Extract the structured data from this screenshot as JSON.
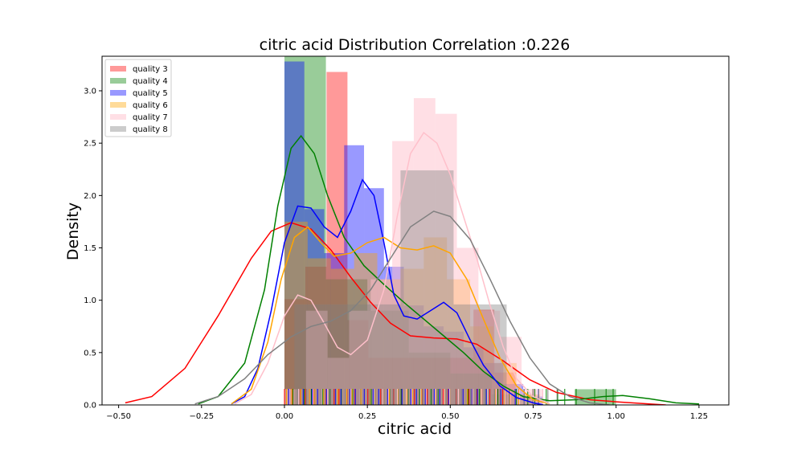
{
  "chart_data": {
    "type": "histogram-kde",
    "title": "citric acid Distribution Correlation :0.226",
    "xlabel": "citric acid",
    "ylabel": "Density",
    "xlim": [
      -0.55,
      1.34
    ],
    "ylim": [
      0,
      3.33
    ],
    "xticks": [
      -0.5,
      -0.25,
      0.0,
      0.25,
      0.5,
      0.75,
      1.0,
      1.25
    ],
    "xtick_labels": [
      "−0.50",
      "−0.25",
      "0.00",
      "0.25",
      "0.50",
      "0.75",
      "1.00",
      "1.25"
    ],
    "yticks": [
      0.0,
      0.5,
      1.0,
      1.5,
      2.0,
      2.5,
      3.0
    ],
    "ytick_labels": [
      "0.0",
      "0.5",
      "1.0",
      "1.5",
      "2.0",
      "2.5",
      "3.0"
    ],
    "legend_position": "top-left",
    "series": [
      {
        "name": "quality 3",
        "color": "#ff0000",
        "hist_alpha": 0.4,
        "bins": [
          {
            "x0": 0.0,
            "x1": 0.063,
            "h": 1.01
          },
          {
            "x0": 0.063,
            "x1": 0.127,
            "h": 1.32
          },
          {
            "x0": 0.127,
            "x1": 0.19,
            "h": 3.18
          },
          {
            "x0": 0.19,
            "x1": 0.253,
            "h": 0.81
          },
          {
            "x0": 0.253,
            "x1": 0.317,
            "h": 0.45
          },
          {
            "x0": 0.317,
            "x1": 0.38,
            "h": 0.45
          },
          {
            "x0": 0.38,
            "x1": 0.443,
            "h": 0.45
          },
          {
            "x0": 0.443,
            "x1": 0.507,
            "h": 0.45
          },
          {
            "x0": 0.507,
            "x1": 0.57,
            "h": 0.45
          },
          {
            "x0": 0.57,
            "x1": 0.633,
            "h": 0.91
          },
          {
            "x0": 0.633,
            "x1": 0.697,
            "h": 0.31
          }
        ],
        "kde": [
          [
            -0.48,
            0.02
          ],
          [
            -0.4,
            0.08
          ],
          [
            -0.3,
            0.35
          ],
          [
            -0.2,
            0.85
          ],
          [
            -0.1,
            1.4
          ],
          [
            -0.04,
            1.66
          ],
          [
            0.02,
            1.74
          ],
          [
            0.08,
            1.68
          ],
          [
            0.14,
            1.48
          ],
          [
            0.2,
            1.22
          ],
          [
            0.26,
            0.98
          ],
          [
            0.32,
            0.78
          ],
          [
            0.38,
            0.66
          ],
          [
            0.45,
            0.64
          ],
          [
            0.52,
            0.63
          ],
          [
            0.58,
            0.58
          ],
          [
            0.66,
            0.42
          ],
          [
            0.74,
            0.24
          ],
          [
            0.82,
            0.12
          ],
          [
            0.92,
            0.05
          ],
          [
            1.0,
            0.03
          ],
          [
            1.1,
            0.01
          ],
          [
            1.15,
            0.0
          ]
        ]
      },
      {
        "name": "quality 4",
        "color": "#008000",
        "hist_alpha": 0.4,
        "bins": [
          {
            "x0": 0.0,
            "x1": 0.125,
            "h": 3.33
          },
          {
            "x0": 0.125,
            "x1": 0.25,
            "h": 1.2
          },
          {
            "x0": 0.25,
            "x1": 0.375,
            "h": 0.9
          },
          {
            "x0": 0.375,
            "x1": 0.5,
            "h": 0.5
          },
          {
            "x0": 0.5,
            "x1": 0.625,
            "h": 0.3
          },
          {
            "x0": 0.625,
            "x1": 0.75,
            "h": 0.1
          },
          {
            "x0": 0.875,
            "x1": 1.0,
            "h": 0.15
          }
        ],
        "kde": [
          [
            -0.26,
            0.01
          ],
          [
            -0.2,
            0.08
          ],
          [
            -0.12,
            0.4
          ],
          [
            -0.06,
            1.1
          ],
          [
            -0.02,
            1.9
          ],
          [
            0.02,
            2.45
          ],
          [
            0.05,
            2.57
          ],
          [
            0.09,
            2.4
          ],
          [
            0.13,
            2.0
          ],
          [
            0.18,
            1.6
          ],
          [
            0.24,
            1.33
          ],
          [
            0.3,
            1.15
          ],
          [
            0.36,
            0.98
          ],
          [
            0.42,
            0.82
          ],
          [
            0.48,
            0.66
          ],
          [
            0.54,
            0.5
          ],
          [
            0.6,
            0.32
          ],
          [
            0.66,
            0.18
          ],
          [
            0.72,
            0.08
          ],
          [
            0.8,
            0.04
          ],
          [
            0.88,
            0.05
          ],
          [
            0.96,
            0.08
          ],
          [
            1.02,
            0.09
          ],
          [
            1.1,
            0.06
          ],
          [
            1.18,
            0.02
          ],
          [
            1.25,
            0.01
          ]
        ]
      },
      {
        "name": "quality 5",
        "color": "#0000ff",
        "hist_alpha": 0.4,
        "bins": [
          {
            "x0": 0.0,
            "x1": 0.06,
            "h": 3.28
          },
          {
            "x0": 0.06,
            "x1": 0.12,
            "h": 1.87
          },
          {
            "x0": 0.12,
            "x1": 0.18,
            "h": 1.45
          },
          {
            "x0": 0.18,
            "x1": 0.24,
            "h": 2.48
          },
          {
            "x0": 0.24,
            "x1": 0.3,
            "h": 2.07
          },
          {
            "x0": 0.3,
            "x1": 0.36,
            "h": 1.32
          },
          {
            "x0": 0.36,
            "x1": 0.42,
            "h": 0.95
          },
          {
            "x0": 0.42,
            "x1": 0.48,
            "h": 0.75
          },
          {
            "x0": 0.48,
            "x1": 0.54,
            "h": 0.7
          },
          {
            "x0": 0.54,
            "x1": 0.6,
            "h": 0.55
          },
          {
            "x0": 0.6,
            "x1": 0.66,
            "h": 0.4
          },
          {
            "x0": 0.66,
            "x1": 0.72,
            "h": 0.2
          },
          {
            "x0": 0.72,
            "x1": 0.78,
            "h": 0.08
          }
        ],
        "kde": [
          [
            -0.16,
            0.01
          ],
          [
            -0.12,
            0.08
          ],
          [
            -0.08,
            0.35
          ],
          [
            -0.04,
            0.9
          ],
          [
            0.0,
            1.55
          ],
          [
            0.04,
            1.9
          ],
          [
            0.08,
            1.88
          ],
          [
            0.12,
            1.7
          ],
          [
            0.16,
            1.6
          ],
          [
            0.2,
            1.85
          ],
          [
            0.235,
            2.15
          ],
          [
            0.27,
            2.0
          ],
          [
            0.3,
            1.55
          ],
          [
            0.33,
            1.05
          ],
          [
            0.36,
            0.85
          ],
          [
            0.4,
            0.82
          ],
          [
            0.44,
            0.9
          ],
          [
            0.48,
            0.98
          ],
          [
            0.52,
            0.88
          ],
          [
            0.56,
            0.62
          ],
          [
            0.6,
            0.38
          ],
          [
            0.65,
            0.18
          ],
          [
            0.7,
            0.07
          ],
          [
            0.75,
            0.02
          ],
          [
            0.78,
            0.0
          ]
        ]
      },
      {
        "name": "quality 6",
        "color": "#ffa500",
        "hist_alpha": 0.4,
        "bins": [
          {
            "x0": 0.0,
            "x1": 0.07,
            "h": 1.75
          },
          {
            "x0": 0.07,
            "x1": 0.14,
            "h": 1.4
          },
          {
            "x0": 0.14,
            "x1": 0.21,
            "h": 1.3
          },
          {
            "x0": 0.21,
            "x1": 0.28,
            "h": 1.45
          },
          {
            "x0": 0.28,
            "x1": 0.35,
            "h": 1.2
          },
          {
            "x0": 0.35,
            "x1": 0.42,
            "h": 1.3
          },
          {
            "x0": 0.42,
            "x1": 0.49,
            "h": 1.6
          },
          {
            "x0": 0.49,
            "x1": 0.56,
            "h": 1.2
          },
          {
            "x0": 0.56,
            "x1": 0.63,
            "h": 0.75
          },
          {
            "x0": 0.63,
            "x1": 0.7,
            "h": 0.4
          },
          {
            "x0": 0.7,
            "x1": 0.77,
            "h": 0.1
          }
        ],
        "kde": [
          [
            -0.16,
            0.01
          ],
          [
            -0.1,
            0.15
          ],
          [
            -0.05,
            0.6
          ],
          [
            -0.01,
            1.2
          ],
          [
            0.03,
            1.6
          ],
          [
            0.07,
            1.7
          ],
          [
            0.11,
            1.55
          ],
          [
            0.15,
            1.42
          ],
          [
            0.2,
            1.45
          ],
          [
            0.25,
            1.55
          ],
          [
            0.3,
            1.6
          ],
          [
            0.35,
            1.5
          ],
          [
            0.4,
            1.48
          ],
          [
            0.45,
            1.52
          ],
          [
            0.5,
            1.45
          ],
          [
            0.55,
            1.2
          ],
          [
            0.6,
            0.82
          ],
          [
            0.65,
            0.45
          ],
          [
            0.7,
            0.18
          ],
          [
            0.75,
            0.05
          ],
          [
            0.8,
            0.01
          ]
        ]
      },
      {
        "name": "quality 7",
        "color": "#ffc0cb",
        "hist_alpha": 0.5,
        "bins": [
          {
            "x0": 0.0,
            "x1": 0.065,
            "h": 0.15
          },
          {
            "x0": 0.065,
            "x1": 0.13,
            "h": 0.9
          },
          {
            "x0": 0.13,
            "x1": 0.195,
            "h": 0.45
          },
          {
            "x0": 0.195,
            "x1": 0.26,
            "h": 0.9
          },
          {
            "x0": 0.26,
            "x1": 0.325,
            "h": 1.2
          },
          {
            "x0": 0.325,
            "x1": 0.39,
            "h": 2.52
          },
          {
            "x0": 0.39,
            "x1": 0.455,
            "h": 2.93
          },
          {
            "x0": 0.455,
            "x1": 0.52,
            "h": 2.78
          },
          {
            "x0": 0.52,
            "x1": 0.585,
            "h": 1.5
          },
          {
            "x0": 0.585,
            "x1": 0.65,
            "h": 0.9
          },
          {
            "x0": 0.65,
            "x1": 0.715,
            "h": 0.65
          },
          {
            "x0": 0.715,
            "x1": 0.78,
            "h": 0.15
          }
        ],
        "kde": [
          [
            -0.15,
            0.01
          ],
          [
            -0.1,
            0.1
          ],
          [
            -0.05,
            0.4
          ],
          [
            0.0,
            0.85
          ],
          [
            0.04,
            1.05
          ],
          [
            0.08,
            1.0
          ],
          [
            0.12,
            0.78
          ],
          [
            0.16,
            0.55
          ],
          [
            0.2,
            0.48
          ],
          [
            0.25,
            0.62
          ],
          [
            0.3,
            1.1
          ],
          [
            0.34,
            1.8
          ],
          [
            0.38,
            2.4
          ],
          [
            0.42,
            2.6
          ],
          [
            0.46,
            2.5
          ],
          [
            0.5,
            2.2
          ],
          [
            0.54,
            1.8
          ],
          [
            0.58,
            1.4
          ],
          [
            0.62,
            0.95
          ],
          [
            0.66,
            0.55
          ],
          [
            0.7,
            0.25
          ],
          [
            0.75,
            0.08
          ],
          [
            0.8,
            0.01
          ]
        ]
      },
      {
        "name": "quality 8",
        "color": "#808080",
        "hist_alpha": 0.4,
        "bins": [
          {
            "x0": 0.03,
            "x1": 0.19,
            "h": 0.96
          },
          {
            "x0": 0.19,
            "x1": 0.35,
            "h": 0.96
          },
          {
            "x0": 0.35,
            "x1": 0.51,
            "h": 2.24
          },
          {
            "x0": 0.51,
            "x1": 0.67,
            "h": 0.96
          },
          {
            "x0": 0.67,
            "x1": 0.83,
            "h": 0.0
          }
        ],
        "kde": [
          [
            -0.27,
            0.01
          ],
          [
            -0.2,
            0.08
          ],
          [
            -0.12,
            0.25
          ],
          [
            -0.05,
            0.48
          ],
          [
            0.02,
            0.65
          ],
          [
            0.08,
            0.75
          ],
          [
            0.14,
            0.8
          ],
          [
            0.2,
            0.9
          ],
          [
            0.26,
            1.1
          ],
          [
            0.32,
            1.4
          ],
          [
            0.38,
            1.7
          ],
          [
            0.45,
            1.85
          ],
          [
            0.5,
            1.8
          ],
          [
            0.56,
            1.58
          ],
          [
            0.62,
            1.2
          ],
          [
            0.68,
            0.8
          ],
          [
            0.74,
            0.45
          ],
          [
            0.8,
            0.2
          ],
          [
            0.86,
            0.08
          ],
          [
            0.92,
            0.02
          ],
          [
            0.98,
            0.0
          ]
        ]
      }
    ]
  }
}
